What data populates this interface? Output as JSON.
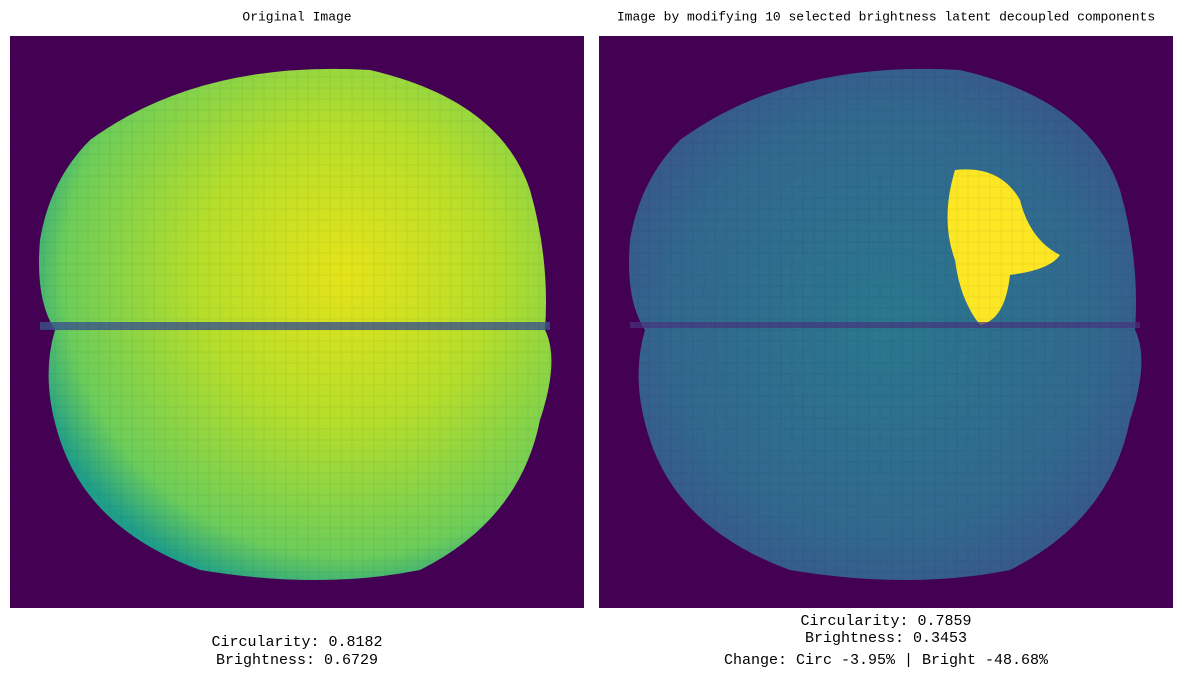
{
  "panels": [
    {
      "title": "Original Image",
      "caption": [
        "Circularity: 0.8182",
        "Brightness: 0.6729"
      ]
    },
    {
      "title": "Image by modifying 10 selected brightness latent decoupled components",
      "caption": [
        "Circularity: 0.7859",
        "Brightness: 0.3453",
        "Change: Circ -3.95% | Bright -48.68%"
      ]
    }
  ]
}
